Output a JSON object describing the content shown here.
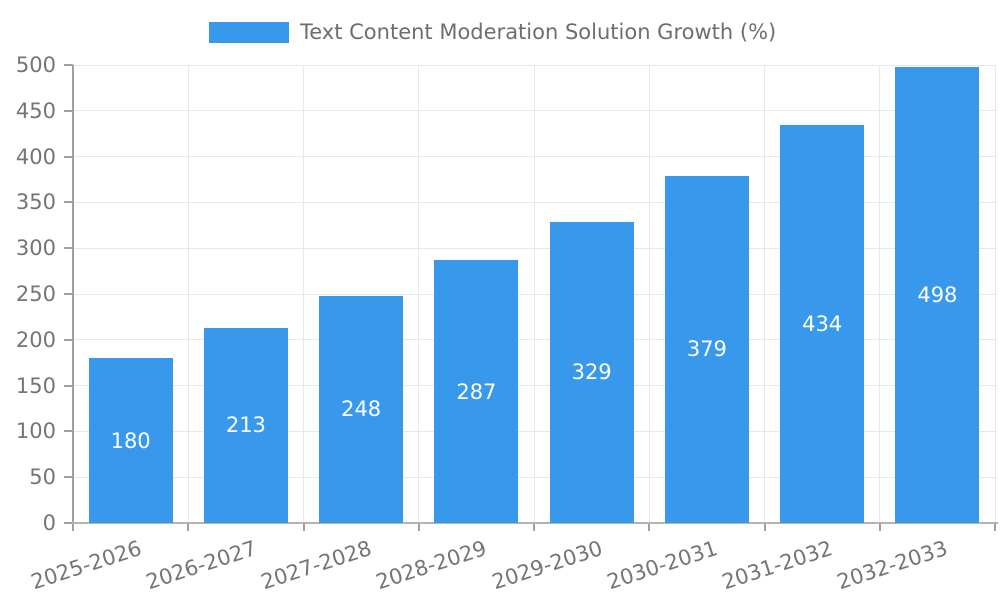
{
  "legend": {
    "label": "Text Content Moderation Solution Growth (%)"
  },
  "chart_data": {
    "type": "bar",
    "title": "Text Content Moderation Solution Growth (%)",
    "categories": [
      "2025-2026",
      "2026-2027",
      "2027-2028",
      "2028-2029",
      "2029-2030",
      "2030-2031",
      "2031-2032",
      "2032-2033"
    ],
    "values": [
      180,
      213,
      248,
      287,
      329,
      379,
      434,
      498
    ],
    "xlabel": "",
    "ylabel": "",
    "ylim": [
      0,
      500
    ],
    "ytick_step": 50,
    "grid": true,
    "legend_position": "top-center",
    "bar_color": "#3899ec",
    "value_label_color": "#ffffff",
    "grid_color": "#e8e8e8",
    "axis_color": "#9f9f9f",
    "tick_label_color": "#757575"
  }
}
